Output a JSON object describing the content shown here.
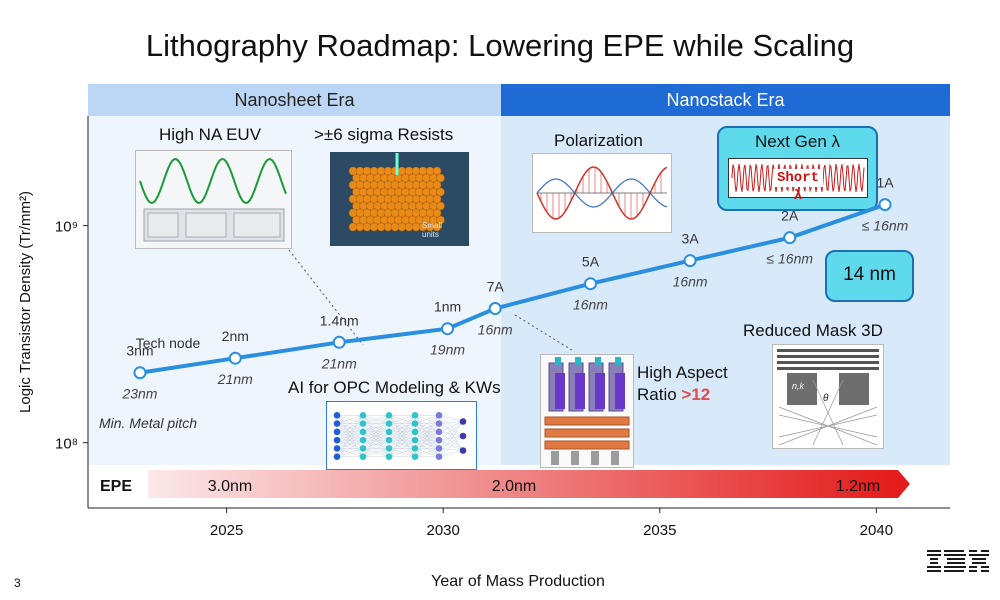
{
  "title": "Lithography Roadmap: Lowering EPE while Scaling",
  "page_number": "3",
  "logo": "IBM",
  "eras": [
    {
      "label": "Nanosheet Era"
    },
    {
      "label": "Nanostack Era"
    }
  ],
  "features": {
    "high_na_euv": "High NA EUV",
    "resists": ">±6 sigma Resists",
    "small_units": "Small units",
    "polarization": "Polarization",
    "next_gen": "Next Gen λ",
    "short_lambda": "Short λ",
    "opc": "AI for OPC Modeling & KWs",
    "high_aspect_line1": "High Aspect",
    "high_aspect_line2": "Ratio",
    "high_aspect_value": ">12",
    "mask3d": "Reduced Mask 3D",
    "mask_nk": "n,k",
    "mask_theta": "θ",
    "pitch_callout": "14 nm"
  },
  "annotations": {
    "tech_node": "Tech node",
    "min_metal_pitch": "Min. Metal pitch"
  },
  "epe": {
    "label": "EPE",
    "values": [
      "3.0nm",
      "2.0nm",
      "1.2nm"
    ],
    "color_start": "#fbe9ea",
    "color_end": "#e31b1b"
  },
  "colors": {
    "line": "#2b8fe0",
    "marker_fill": "#ffffff",
    "era_nanosheet": "#bcd6f5",
    "era_nanostack": "#1e6bd6"
  },
  "chart_data": {
    "type": "line",
    "xlabel": "Year of Mass Production",
    "ylabel": "Logic Transistor Density (Tr/mm²)",
    "x_ticks": [
      2025,
      2030,
      2035,
      2040
    ],
    "y_ticks": [
      {
        "value": 100000000,
        "label": "10⁸"
      },
      {
        "value": 1000000000,
        "label": "10⁹"
      }
    ],
    "y_scale": "log",
    "xlim": [
      2021.8,
      2041.7
    ],
    "ylim": [
      50000000,
      3200000000
    ],
    "series": [
      {
        "points": [
          {
            "x": 2023,
            "y": 210000000,
            "node": "3nm",
            "pitch": "23nm"
          },
          {
            "x": 2025.2,
            "y": 245000000,
            "node": "2nm",
            "pitch": "21nm"
          },
          {
            "x": 2027.6,
            "y": 290000000,
            "node": "1.4nm",
            "pitch": "21nm"
          },
          {
            "x": 2030.1,
            "y": 335000000,
            "node": "1nm",
            "pitch": "19nm"
          },
          {
            "x": 2031.2,
            "y": 415000000,
            "node": "7A",
            "pitch": "16nm"
          },
          {
            "x": 2033.4,
            "y": 540000000,
            "node": "5A",
            "pitch": "16nm"
          },
          {
            "x": 2035.7,
            "y": 690000000,
            "node": "3A",
            "pitch": "16nm"
          },
          {
            "x": 2038,
            "y": 880000000,
            "node": "2A",
            "pitch": "≤ 16nm"
          },
          {
            "x": 2040.2,
            "y": 1250000000,
            "node": "1A",
            "pitch": "≤ 16nm"
          }
        ]
      }
    ]
  }
}
